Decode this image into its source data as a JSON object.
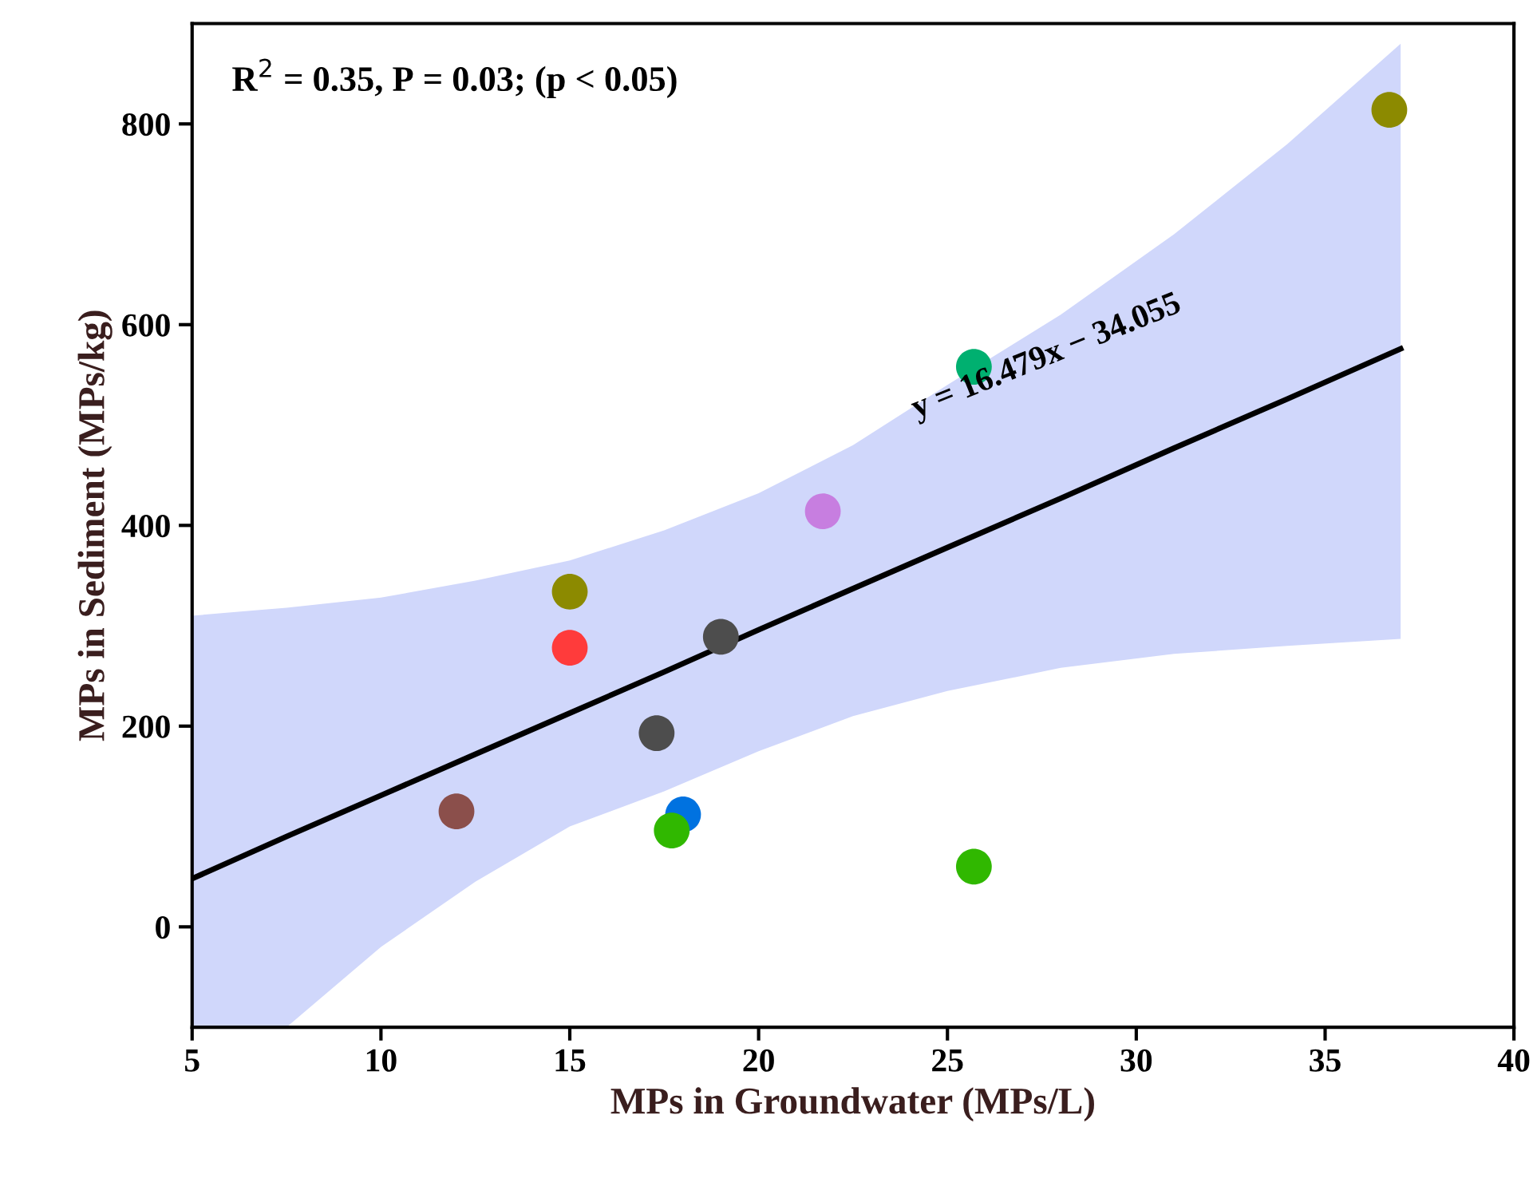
{
  "chart_data": {
    "type": "scatter",
    "xlabel": "MPs in Groundwater (MPs/L)",
    "ylabel": "MPs in Sediment (MPs/kg)",
    "xlim": [
      5,
      40
    ],
    "xticks": [
      5,
      10,
      15,
      20,
      25,
      30,
      35,
      40
    ],
    "ylim": [
      -100,
      900
    ],
    "yticks": [
      0,
      200,
      400,
      600,
      800
    ],
    "grid": false,
    "marker": "circle",
    "series": [
      {
        "type": "line",
        "color": "#000000",
        "line_style": "solid",
        "x": [
          5,
          7.5,
          10,
          12.5,
          15,
          17.5,
          20,
          22.5,
          25,
          28,
          31,
          34,
          37
        ],
        "values": [
          48,
          90,
          131,
          172,
          213,
          254,
          296,
          337,
          378,
          427,
          477,
          526,
          576
        ],
        "lower": [
          -100,
          -100,
          -20,
          45,
          100,
          135,
          175,
          210,
          235,
          258,
          272,
          280,
          287
        ],
        "upper": [
          310,
          318,
          328,
          345,
          365,
          395,
          432,
          480,
          540,
          610,
          690,
          780,
          880
        ],
        "marker": "none"
      },
      {
        "x": [
          12.0,
          15.0,
          15.0,
          17.3,
          19.0,
          18.0,
          17.7,
          21.7,
          25.7,
          25.7,
          36.7
        ],
        "values": [
          115,
          334,
          278,
          193,
          289,
          112,
          96,
          414,
          558,
          60,
          814
        ],
        "colors": [
          "#8b4f4b",
          "#8c8a00",
          "#ff3b3b",
          "#4d4d4d",
          "#4d4d4d",
          "#0072e0",
          "#30b800",
          "#c77ee0",
          "#00b070",
          "#30b800",
          "#8c8a00"
        ]
      }
    ],
    "annotations": [
      "R$^{2}$ = 0.35, P = 0.03; (p < 0.05)",
      "y = 16.479x − 34.055"
    ]
  }
}
